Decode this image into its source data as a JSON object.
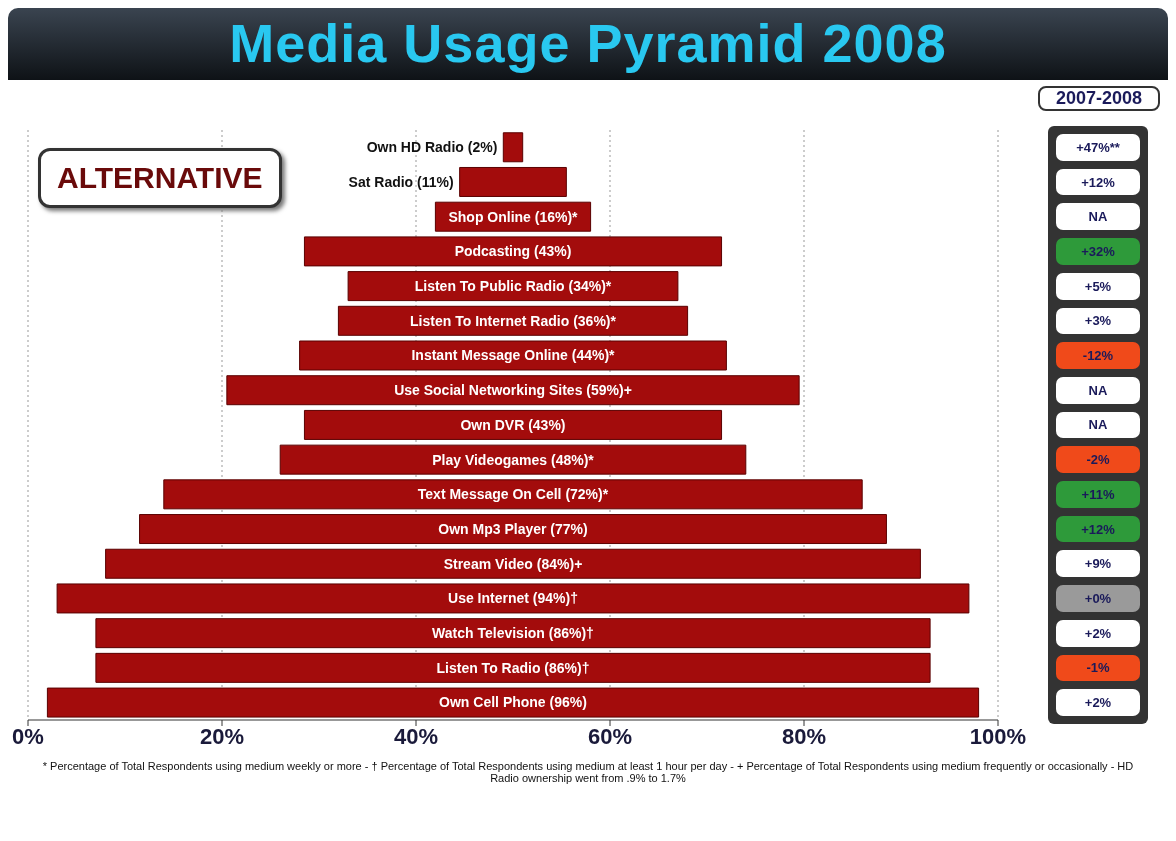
{
  "chart_data": [
    {
      "type": "bar",
      "title": "Media Usage Pyramid 2008",
      "orientation": "horizontal",
      "categories": [
        "Own HD Radio (2%)",
        "Sat Radio (11%)",
        "Shop Online (16%)*",
        "Podcasting (43%)",
        "Listen To Public Radio (34%)*",
        "Listen To Internet Radio (36%)*",
        "Instant Message Online (44%)*",
        "Use Social Networking Sites (59%)+",
        "Own DVR (43%)",
        "Play Videogames (48%)*",
        "Text Message On Cell (72%)*",
        "Own Mp3 Player (77%)",
        "Stream Video (84%)+",
        "Use Internet (94%)†",
        "Watch Television (86%)†",
        "Listen To Radio (86%)†",
        "Own Cell Phone (96%)"
      ],
      "values": [
        2,
        11,
        16,
        43,
        34,
        36,
        44,
        59,
        43,
        48,
        72,
        77,
        84,
        94,
        86,
        86,
        96
      ],
      "base": [
        49,
        44.5,
        42,
        28.5,
        33,
        32,
        28,
        20.5,
        28.5,
        26,
        14,
        11.5,
        8,
        3,
        7,
        7,
        2
      ],
      "color": "#a30c0c",
      "xlim": [
        0,
        100
      ],
      "xticks": [
        {
          "value": 0,
          "label": "0%"
        },
        {
          "value": 20,
          "label": "20%"
        },
        {
          "value": 40,
          "label": "40%"
        },
        {
          "value": 60,
          "label": "60%"
        },
        {
          "value": 80,
          "label": "80%"
        },
        {
          "value": 100,
          "label": "100%"
        }
      ],
      "grid": "x",
      "annotations": [
        "ALTERNATIVE",
        "* Percentage of Total Respondents using medium weekly or more - † Percentage of Total Respondents using medium at least 1 hour per day - + Percentage of Total Respondents using medium frequently or occasionally - HD Radio ownership went from .9% to 1.7%"
      ]
    },
    {
      "type": "other",
      "title": "2007-2008",
      "categories": [
        "+47%**",
        "+12%",
        "NA",
        "+32%",
        "+5%",
        "+3%",
        "-12%",
        "NA",
        "NA",
        "-2%",
        "+11%",
        "+12%",
        "+9%",
        "+0%",
        "+2%",
        "-1%",
        "+2%"
      ],
      "colors": [
        "#ffffff",
        "#ffffff",
        "#ffffff",
        "#2e9a3a",
        "#ffffff",
        "#ffffff",
        "#f04a1a",
        "#ffffff",
        "#ffffff",
        "#f04a1a",
        "#2e9a3a",
        "#2e9a3a",
        "#ffffff",
        "#9a9a9a",
        "#ffffff",
        "#f04a1a",
        "#ffffff"
      ]
    }
  ]
}
